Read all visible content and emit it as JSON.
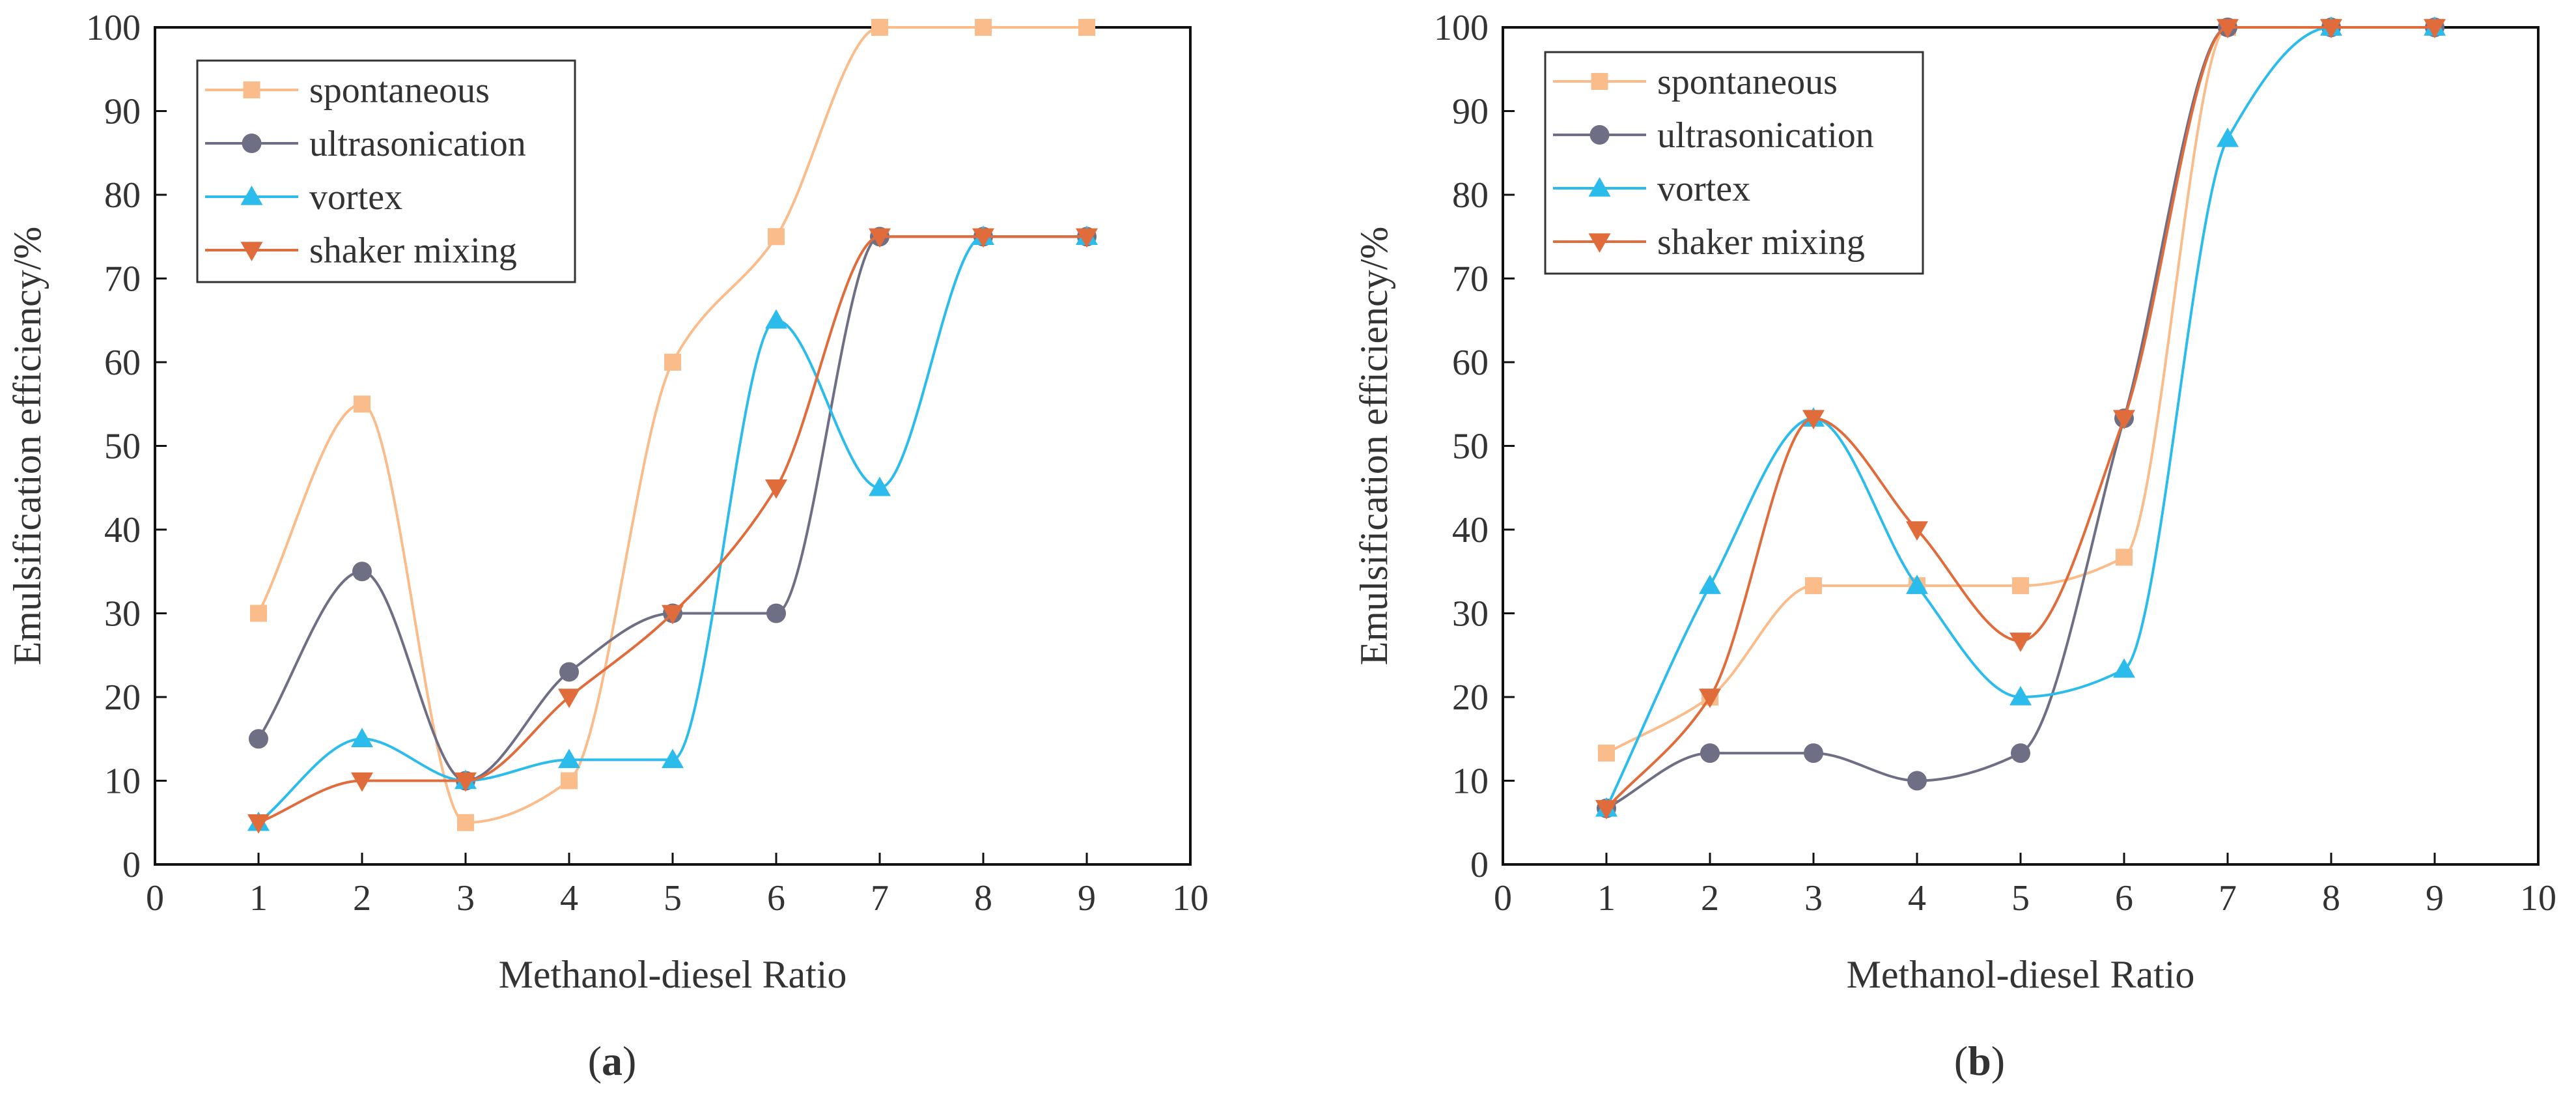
{
  "chart_data": [
    {
      "type": "line",
      "panel_label": "(a)",
      "panel_letter": "a",
      "xlabel": "Methanol-diesel Ratio",
      "ylabel": "Emulsification efficiency/%",
      "xlim": [
        0,
        10
      ],
      "ylim": [
        0,
        100
      ],
      "xticks": [
        0,
        1,
        2,
        3,
        4,
        5,
        6,
        7,
        8,
        9,
        10
      ],
      "yticks": [
        0,
        10,
        20,
        30,
        40,
        50,
        60,
        70,
        80,
        90,
        100
      ],
      "legend_position": "top-left",
      "grid": false,
      "x": [
        1,
        2,
        3,
        4,
        5,
        6,
        7,
        8,
        9
      ],
      "series": [
        {
          "name": "spontaneous",
          "color": "#f9bc8a",
          "marker": "square",
          "values": [
            30,
            55,
            5,
            10,
            60,
            75,
            100,
            100,
            100
          ]
        },
        {
          "name": "ultrasonication",
          "color": "#6e6e84",
          "marker": "circle",
          "values": [
            15,
            35,
            10,
            23,
            30,
            30,
            75,
            75,
            75
          ]
        },
        {
          "name": "vortex",
          "color": "#2cbcec",
          "marker": "triangle-up",
          "values": [
            5,
            15,
            10,
            12.5,
            12.5,
            65,
            45,
            75,
            75
          ]
        },
        {
          "name": "shaker mixing",
          "color": "#e06c3c",
          "marker": "triangle-down",
          "values": [
            5,
            10,
            10,
            20,
            30,
            45,
            75,
            75,
            75
          ]
        }
      ]
    },
    {
      "type": "line",
      "panel_label": "(b)",
      "panel_letter": "b",
      "xlabel": "Methanol-diesel Ratio",
      "ylabel": "Emulsification efficiency/%",
      "xlim": [
        0,
        10
      ],
      "ylim": [
        0,
        100
      ],
      "xticks": [
        0,
        1,
        2,
        3,
        4,
        5,
        6,
        7,
        8,
        9,
        10
      ],
      "yticks": [
        0,
        10,
        20,
        30,
        40,
        50,
        60,
        70,
        80,
        90,
        100
      ],
      "legend_position": "top-left",
      "grid": false,
      "x": [
        1,
        2,
        3,
        4,
        5,
        6,
        7,
        8,
        9
      ],
      "series": [
        {
          "name": "spontaneous",
          "color": "#f9bc8a",
          "marker": "square",
          "values": [
            13.3,
            20,
            33.3,
            33.3,
            33.3,
            36.7,
            100,
            100,
            100
          ]
        },
        {
          "name": "ultrasonication",
          "color": "#6e6e84",
          "marker": "circle",
          "values": [
            6.7,
            13.3,
            13.3,
            10,
            13.3,
            53.3,
            100,
            100,
            100
          ]
        },
        {
          "name": "vortex",
          "color": "#2cbcec",
          "marker": "triangle-up",
          "values": [
            6.7,
            33.3,
            53.3,
            33.3,
            20,
            23.3,
            86.7,
            100,
            100
          ]
        },
        {
          "name": "shaker mixing",
          "color": "#e06c3c",
          "marker": "triangle-down",
          "values": [
            6.7,
            20,
            53.3,
            40,
            26.7,
            53.3,
            100,
            100,
            100
          ]
        }
      ]
    }
  ]
}
